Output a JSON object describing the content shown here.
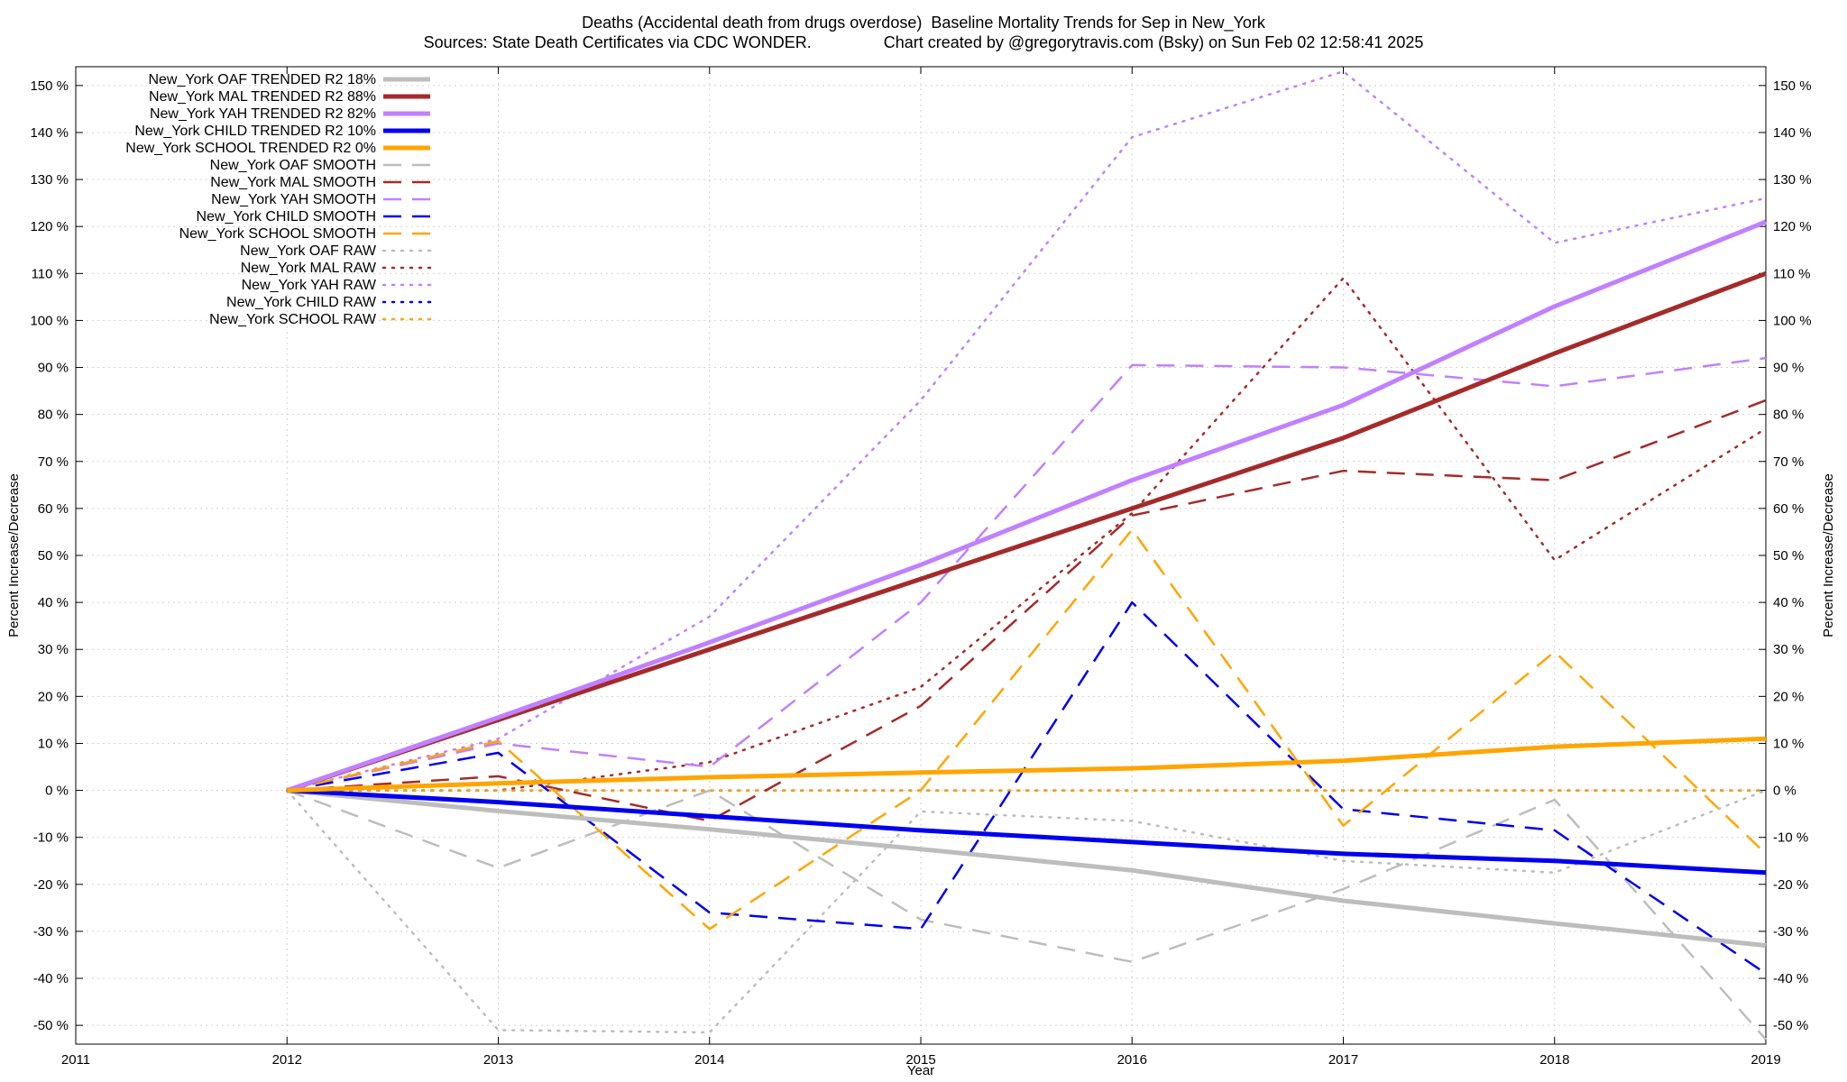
{
  "chart_data": {
    "type": "line",
    "title": "Deaths (Accidental death from drugs overdose)  Baseline Mortality Trends for Sep in New_York",
    "subtitle": "Sources: State Death Certificates via CDC WONDER.                Chart created by @gregorytravis.com (Bsky) on Sun Feb 02 12:58:41 2025",
    "xlabel": "Year",
    "ylabel": "Percent Increase/Decrease",
    "ylabel_right": "Percent Increase/Decrease",
    "xlim": [
      2011,
      2019
    ],
    "ylim": [
      -54,
      154
    ],
    "x_ticks": [
      2011,
      2012,
      2013,
      2014,
      2015,
      2016,
      2017,
      2018,
      2019
    ],
    "y_ticks": [
      -50,
      -40,
      -30,
      -20,
      -10,
      0,
      10,
      20,
      30,
      40,
      50,
      60,
      70,
      80,
      90,
      100,
      110,
      120,
      130,
      140,
      150
    ],
    "y_tick_suffix": " %",
    "grid": true,
    "legend_position": "top-left",
    "x": [
      2012,
      2013,
      2014,
      2015,
      2016,
      2017,
      2018,
      2019
    ],
    "series": [
      {
        "name": "New_York OAF TRENDED R2  18%",
        "color": "#bdbdbd",
        "style": "solid",
        "width": 5,
        "values": [
          0,
          -4.4,
          -8.3,
          -12.5,
          -17,
          -23.5,
          -28.3,
          -33
        ]
      },
      {
        "name": "New_York MAL TRENDED R2  88%",
        "color": "#a52a2a",
        "style": "solid",
        "width": 5,
        "values": [
          0,
          15,
          30,
          45,
          60,
          75,
          93,
          110
        ]
      },
      {
        "name": "New_York YAH TRENDED R2  82%",
        "color": "#c080ff",
        "style": "solid",
        "width": 5,
        "values": [
          0,
          15.5,
          31.5,
          48,
          66,
          82,
          103,
          121
        ]
      },
      {
        "name": "New_York CHILD TRENDED R2  10%",
        "color": "#0000ee",
        "style": "solid",
        "width": 5,
        "values": [
          0,
          -2.5,
          -5.5,
          -8.5,
          -11,
          -13.5,
          -15,
          -17.5
        ]
      },
      {
        "name": "New_York SCHOOL TRENDED R2   0%",
        "color": "#ffa500",
        "style": "solid",
        "width": 5,
        "values": [
          0,
          1.5,
          2.8,
          3.8,
          4.7,
          6.3,
          9.3,
          11
        ]
      },
      {
        "name": "New_York OAF SMOOTH",
        "color": "#bdbdbd",
        "style": "dashed",
        "width": 2.5,
        "values": [
          0,
          -16.5,
          0,
          -27.5,
          -36.5,
          -21,
          -2,
          -53
        ]
      },
      {
        "name": "New_York MAL SMOOTH",
        "color": "#a52a2a",
        "style": "dashed",
        "width": 2.5,
        "values": [
          0,
          3,
          -6.5,
          18,
          58.5,
          68,
          66,
          83
        ]
      },
      {
        "name": "New_York YAH SMOOTH",
        "color": "#c080ff",
        "style": "dashed",
        "width": 2.5,
        "values": [
          0,
          10,
          5,
          40,
          90.5,
          90,
          86,
          92
        ]
      },
      {
        "name": "New_York CHILD SMOOTH",
        "color": "#0000ee",
        "style": "dashed",
        "width": 2.5,
        "values": [
          0,
          8,
          -26,
          -29.5,
          40,
          -4,
          -8.5,
          -39
        ]
      },
      {
        "name": "New_York SCHOOL SMOOTH",
        "color": "#ffa500",
        "style": "dashed",
        "width": 2.5,
        "values": [
          0,
          10.5,
          -29.5,
          0,
          55.5,
          -7.5,
          29.5,
          -13.5
        ]
      },
      {
        "name": "New_York OAF RAW",
        "color": "#bdbdbd",
        "style": "dotted",
        "width": 2.5,
        "values": [
          0,
          -51,
          -51.5,
          -4.5,
          -6.5,
          -15,
          -17.5,
          0
        ]
      },
      {
        "name": "New_York MAL RAW",
        "color": "#a52a2a",
        "style": "dotted",
        "width": 2.5,
        "values": [
          0,
          0,
          6,
          22,
          59,
          109,
          49,
          77
        ]
      },
      {
        "name": "New_York YAH RAW",
        "color": "#c080ff",
        "style": "dotted",
        "width": 2.5,
        "values": [
          0,
          11,
          37,
          83,
          139,
          153,
          116.5,
          126
        ]
      },
      {
        "name": "New_York CHILD RAW",
        "color": "#0000ee",
        "style": "dotted",
        "width": 2.5,
        "values": [
          0,
          0,
          0,
          0,
          0,
          0,
          0,
          0
        ]
      },
      {
        "name": "New_York SCHOOL RAW",
        "color": "#ffa500",
        "style": "dotted",
        "width": 2.5,
        "values": [
          0,
          0,
          0,
          0,
          0,
          0,
          0,
          0
        ]
      }
    ]
  }
}
